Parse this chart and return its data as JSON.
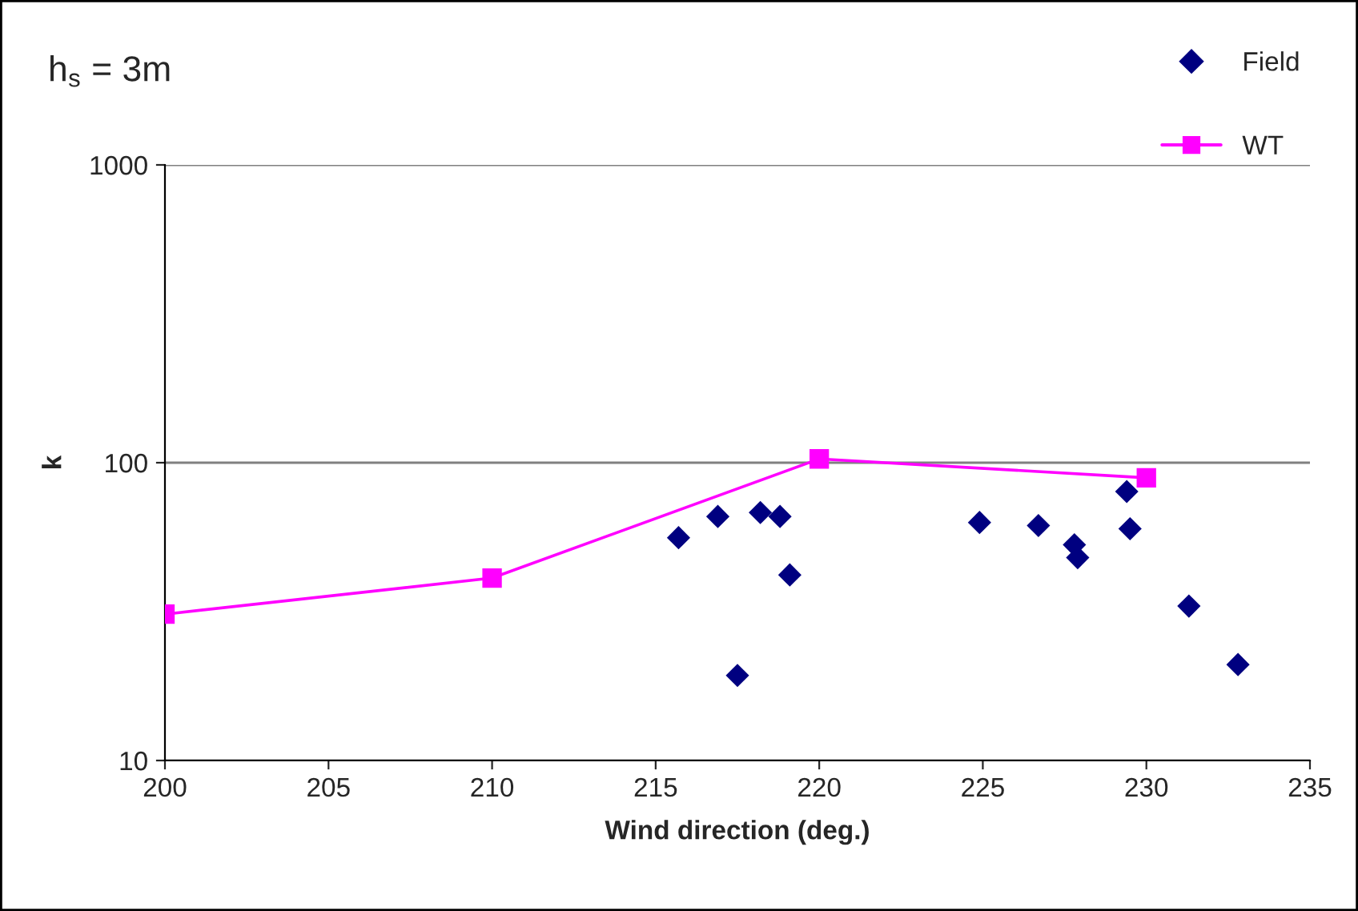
{
  "chart_data": {
    "type": "scatter",
    "title": "h$_{s}$ = 3m",
    "xlabel": "Wind direction (deg.)",
    "ylabel": "k",
    "log": "y",
    "grid": "y",
    "legend": "top right",
    "xlim": [
      200,
      235
    ],
    "xticks": [
      200,
      205,
      210,
      215,
      220,
      225,
      230,
      235
    ],
    "ylim": [
      10,
      1000
    ],
    "yticks": [
      10,
      100,
      1000
    ],
    "series": [
      {
        "name": "Field",
        "marker": "diamond",
        "color": "#000080",
        "x": [
          215.7,
          216.9,
          218.2,
          218.8,
          219.1,
          217.5,
          224.9,
          226.7,
          227.8,
          227.9,
          229.4,
          229.5,
          231.3,
          232.8
        ],
        "values": [
          56,
          66,
          68,
          66,
          42,
          19.3,
          63,
          61.5,
          53,
          48,
          80,
          60,
          33,
          21
        ]
      },
      {
        "name": "WT",
        "type": "line",
        "marker": "square",
        "line_style": "solid",
        "color": "#ff00ff",
        "x": [
          200,
          210,
          220,
          230
        ],
        "values": [
          31,
          41,
          103,
          89
        ]
      }
    ]
  }
}
